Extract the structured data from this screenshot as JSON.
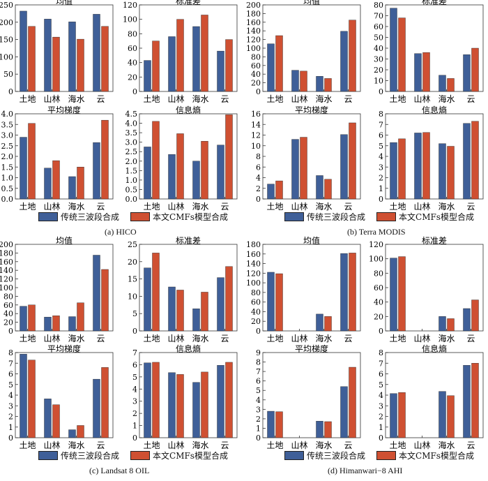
{
  "colors": {
    "series1": "#3f5f98",
    "series2": "#cf5032"
  },
  "legend": {
    "series1": "传统三波段合成",
    "series2": "本文CMFs模型合成"
  },
  "captions": {
    "a": "(a) HICO",
    "b": "(b) Terra MODIS",
    "c": "(c) Landsat 8 OIL",
    "d": "(d) Himanwari−8 AHI"
  },
  "chart_data": [
    {
      "id": "a1",
      "type": "bar",
      "title": "均值",
      "categories": [
        "土地",
        "山林",
        "海水",
        "云"
      ],
      "ylim": [
        0,
        250
      ],
      "yticks": [
        0,
        50,
        100,
        150,
        200,
        250
      ],
      "series": [
        {
          "name": "传统三波段合成",
          "values": [
            232,
            209,
            201,
            223
          ]
        },
        {
          "name": "本文CMFs模型合成",
          "values": [
            188,
            157,
            151,
            188
          ]
        }
      ]
    },
    {
      "id": "a2",
      "type": "bar",
      "title": "标准差",
      "categories": [
        "土地",
        "山林",
        "海水",
        "云"
      ],
      "ylim": [
        0,
        120
      ],
      "yticks": [
        0,
        20,
        40,
        60,
        80,
        100,
        120
      ],
      "series": [
        {
          "name": "传统三波段合成",
          "values": [
            43,
            76,
            90,
            56
          ]
        },
        {
          "name": "本文CMFs模型合成",
          "values": [
            70,
            100,
            106,
            72
          ]
        }
      ]
    },
    {
      "id": "b1",
      "type": "bar",
      "title": "均值",
      "categories": [
        "土地",
        "山林",
        "海水",
        "云"
      ],
      "ylim": [
        0,
        200
      ],
      "yticks": [
        0,
        20,
        40,
        60,
        80,
        100,
        120,
        140,
        160,
        180,
        200
      ],
      "series": [
        {
          "name": "传统三波段合成",
          "values": [
            110,
            49,
            35,
            139
          ]
        },
        {
          "name": "本文CMFs模型合成",
          "values": [
            129,
            47,
            30,
            165
          ]
        }
      ]
    },
    {
      "id": "b2",
      "type": "bar",
      "title": "标准差",
      "categories": [
        "土地",
        "山林",
        "海水",
        "云"
      ],
      "ylim": [
        0,
        80
      ],
      "yticks": [
        0,
        10,
        20,
        30,
        40,
        50,
        60,
        70,
        80
      ],
      "series": [
        {
          "name": "传统三波段合成",
          "values": [
            77,
            35,
            15,
            34
          ]
        },
        {
          "name": "本文CMFs模型合成",
          "values": [
            68,
            36,
            12,
            40
          ]
        }
      ]
    },
    {
      "id": "a3",
      "type": "bar",
      "title": "平均梯度",
      "categories": [
        "土地",
        "山林",
        "海水",
        "云"
      ],
      "ylim": [
        0,
        4
      ],
      "yticks": [
        0,
        0.5,
        1.0,
        1.5,
        2.0,
        2.5,
        3.0,
        3.5,
        4.0
      ],
      "series": [
        {
          "name": "传统三波段合成",
          "values": [
            2.9,
            1.45,
            1.05,
            2.65
          ]
        },
        {
          "name": "本文CMFs模型合成",
          "values": [
            3.55,
            1.8,
            1.5,
            3.7
          ]
        }
      ]
    },
    {
      "id": "a4",
      "type": "bar",
      "title": "信息熵",
      "categories": [
        "土地",
        "山林",
        "海水",
        "云"
      ],
      "ylim": [
        0,
        4.5
      ],
      "yticks": [
        0,
        0.5,
        1.0,
        1.5,
        2.0,
        2.5,
        3.0,
        3.5,
        4.0,
        4.5
      ],
      "series": [
        {
          "name": "传统三波段合成",
          "values": [
            2.75,
            2.35,
            2.0,
            2.85
          ]
        },
        {
          "name": "本文CMFs模型合成",
          "values": [
            4.1,
            3.45,
            3.05,
            4.45
          ]
        }
      ]
    },
    {
      "id": "b3",
      "type": "bar",
      "title": "平均梯度",
      "categories": [
        "土地",
        "山林",
        "海水",
        "云"
      ],
      "ylim": [
        0,
        16
      ],
      "yticks": [
        0,
        2,
        4,
        6,
        8,
        10,
        12,
        14,
        16
      ],
      "series": [
        {
          "name": "传统三波段合成",
          "values": [
            2.8,
            11.2,
            4.4,
            12.1
          ]
        },
        {
          "name": "本文CMFs模型合成",
          "values": [
            3.4,
            11.6,
            3.7,
            14.3
          ]
        }
      ]
    },
    {
      "id": "b4",
      "type": "bar",
      "title": "信息熵",
      "categories": [
        "土地",
        "山林",
        "海水",
        "云"
      ],
      "ylim": [
        0,
        8
      ],
      "yticks": [
        0,
        1,
        2,
        3,
        4,
        5,
        6,
        7,
        8
      ],
      "series": [
        {
          "name": "传统三波段合成",
          "values": [
            5.3,
            6.2,
            5.2,
            7.1
          ]
        },
        {
          "name": "本文CMFs模型合成",
          "values": [
            5.65,
            6.25,
            4.95,
            7.3
          ]
        }
      ]
    },
    {
      "id": "c1",
      "type": "bar",
      "title": "均值",
      "categories": [
        "土地",
        "山林",
        "海水",
        "云"
      ],
      "ylim": [
        0,
        200
      ],
      "yticks": [
        0,
        20,
        40,
        60,
        80,
        100,
        120,
        140,
        160,
        180,
        200
      ],
      "series": [
        {
          "name": "传统三波段合成",
          "values": [
            57,
            32,
            33,
            175
          ]
        },
        {
          "name": "本文CMFs模型合成",
          "values": [
            60,
            35,
            65,
            142
          ]
        }
      ]
    },
    {
      "id": "c2",
      "type": "bar",
      "title": "标准差",
      "categories": [
        "土地",
        "山林",
        "海水",
        "云"
      ],
      "ylim": [
        0,
        25
      ],
      "yticks": [
        0,
        5,
        10,
        15,
        20,
        25
      ],
      "series": [
        {
          "name": "传统三波段合成",
          "values": [
            18.2,
            12.7,
            6.4,
            15.4
          ]
        },
        {
          "name": "本文CMFs模型合成",
          "values": [
            22.5,
            11.8,
            11.2,
            18.6
          ]
        }
      ]
    },
    {
      "id": "d1",
      "type": "bar",
      "title": "均值",
      "categories": [
        "土地",
        "山林",
        "海水",
        "云"
      ],
      "ylim": [
        0,
        180
      ],
      "yticks": [
        0,
        20,
        40,
        60,
        80,
        100,
        120,
        140,
        160,
        180
      ],
      "series": [
        {
          "name": "传统三波段合成",
          "values": [
            122,
            0,
            35,
            161
          ]
        },
        {
          "name": "本文CMFs模型合成",
          "values": [
            119,
            0,
            30,
            162
          ]
        }
      ]
    },
    {
      "id": "d2",
      "type": "bar",
      "title": "标准差",
      "categories": [
        "土地",
        "山林",
        "海水",
        "云"
      ],
      "ylim": [
        0,
        120
      ],
      "yticks": [
        0,
        20,
        40,
        60,
        80,
        100,
        120
      ],
      "series": [
        {
          "name": "传统三波段合成",
          "values": [
            101,
            0,
            20,
            31
          ]
        },
        {
          "name": "本文CMFs模型合成",
          "values": [
            103,
            0,
            17,
            43
          ]
        }
      ]
    },
    {
      "id": "c3",
      "type": "bar",
      "title": "平均梯度",
      "categories": [
        "土地",
        "山林",
        "海水",
        "云"
      ],
      "ylim": [
        0,
        8
      ],
      "yticks": [
        0,
        1,
        2,
        3,
        4,
        5,
        6,
        7,
        8
      ],
      "series": [
        {
          "name": "传统三波段合成",
          "values": [
            7.85,
            3.65,
            0.75,
            5.5
          ]
        },
        {
          "name": "本文CMFs模型合成",
          "values": [
            7.3,
            3.1,
            1.15,
            6.6
          ]
        }
      ]
    },
    {
      "id": "c4",
      "type": "bar",
      "title": "信息熵",
      "categories": [
        "土地",
        "山林",
        "海水",
        "云"
      ],
      "ylim": [
        0,
        7
      ],
      "yticks": [
        0,
        1,
        2,
        3,
        4,
        5,
        6,
        7
      ],
      "series": [
        {
          "name": "传统三波段合成",
          "values": [
            6.15,
            5.35,
            4.55,
            5.95
          ]
        },
        {
          "name": "本文CMFs模型合成",
          "values": [
            6.2,
            5.2,
            5.4,
            6.2
          ]
        }
      ]
    },
    {
      "id": "d3",
      "type": "bar",
      "title": "平均梯度",
      "categories": [
        "土地",
        "山林",
        "海水",
        "云"
      ],
      "ylim": [
        0,
        9
      ],
      "yticks": [
        0,
        1,
        2,
        3,
        4,
        5,
        6,
        7,
        8,
        9
      ],
      "series": [
        {
          "name": "传统三波段合成",
          "values": [
            2.8,
            0,
            1.75,
            5.4
          ]
        },
        {
          "name": "本文CMFs模型合成",
          "values": [
            2.75,
            0,
            1.7,
            7.45
          ]
        }
      ]
    },
    {
      "id": "d4",
      "type": "bar",
      "title": "信息熵",
      "categories": [
        "土地",
        "山林",
        "海水",
        "云"
      ],
      "ylim": [
        0,
        8
      ],
      "yticks": [
        0,
        1,
        2,
        3,
        4,
        5,
        6,
        7,
        8
      ],
      "series": [
        {
          "name": "传统三波段合成",
          "values": [
            4.15,
            0,
            4.35,
            6.8
          ]
        },
        {
          "name": "本文CMFs模型合成",
          "values": [
            4.25,
            0,
            3.95,
            7.0
          ]
        }
      ]
    }
  ]
}
